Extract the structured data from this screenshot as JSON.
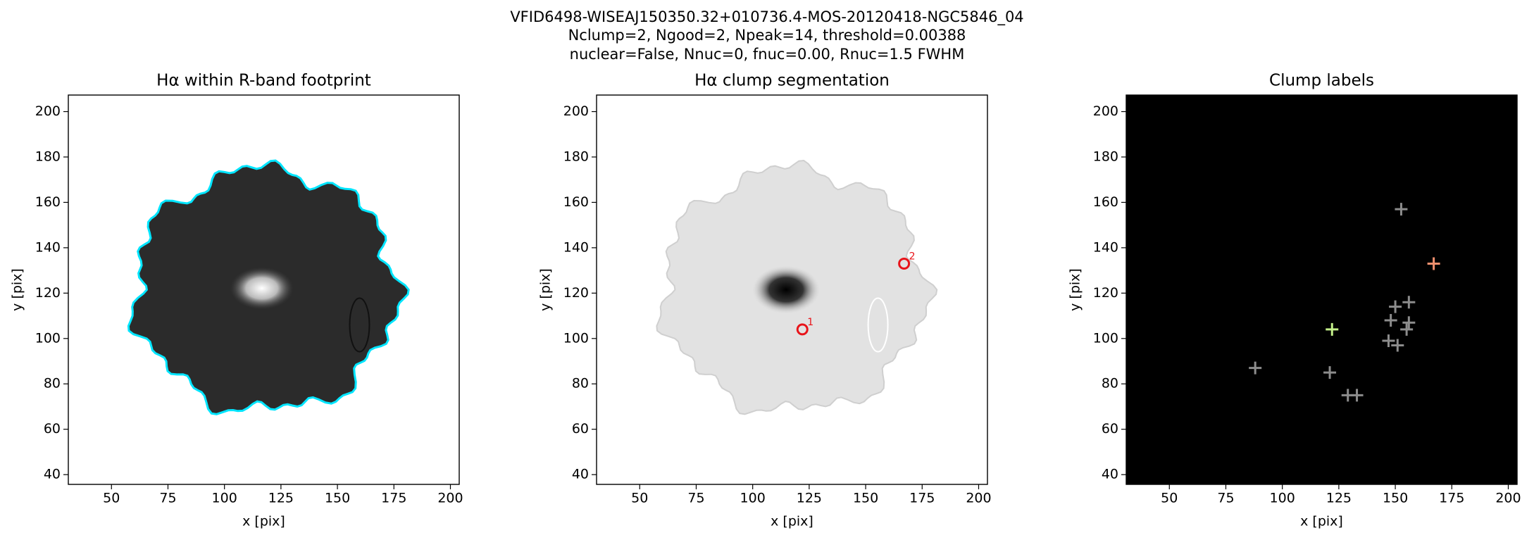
{
  "title": [
    "VFID6498-WISEAJ150350.32+010736.4-MOS-20120418-NGC5846_04",
    "Nclump=2, Ngood=2, Npeak=14, threshold=0.00388",
    "nuclear=False, Nnuc=0, fnuc=0.00, Rnuc=1.5 FWHM"
  ],
  "chart_data": [
    {
      "type": "image",
      "title": "Hα within R-band footprint",
      "xlabel": "x [pix]",
      "ylabel": "y [pix]",
      "xlim": [
        30.9,
        203.9
      ],
      "ylim": [
        35.7,
        207.3
      ],
      "xticks": [
        50,
        75,
        100,
        125,
        150,
        175,
        200
      ],
      "yticks": [
        40,
        60,
        80,
        100,
        120,
        140,
        160,
        180,
        200
      ],
      "image": "footprint"
    },
    {
      "type": "scatter",
      "title": "Hα clump segmentation",
      "xlabel": "x [pix]",
      "ylabel": "y [pix]",
      "xlim": [
        30.9,
        203.9
      ],
      "ylim": [
        35.7,
        207.3
      ],
      "xticks": [
        50,
        75,
        100,
        125,
        150,
        175,
        200
      ],
      "yticks": [
        40,
        60,
        80,
        100,
        120,
        140,
        160,
        180,
        200
      ],
      "image": "segmentation",
      "marker": "circle",
      "color": "#e8141a",
      "x": [
        122,
        167
      ],
      "values": [
        104,
        133
      ],
      "labels": [
        "1",
        "2"
      ]
    },
    {
      "type": "scatter",
      "title": "Clump labels",
      "xlabel": "x [pix]",
      "ylabel": "y [pix]",
      "xlim": [
        30.9,
        203.9
      ],
      "ylim": [
        35.7,
        207.3
      ],
      "xticks": [
        50,
        75,
        100,
        125,
        150,
        175,
        200
      ],
      "yticks": [
        40,
        60,
        80,
        100,
        120,
        140,
        160,
        180,
        200
      ],
      "image": "labels",
      "marker": "plus",
      "x": [
        152.6,
        167,
        122,
        88,
        121,
        129,
        133,
        148,
        150,
        156,
        156,
        155,
        147,
        151
      ],
      "values": [
        157,
        133,
        104,
        87,
        85,
        75,
        75,
        108,
        114,
        116,
        107,
        104,
        99,
        97
      ],
      "colors": [
        "#8c8c8c",
        "#f0906e",
        "#c4f08a",
        "#8c8c8c",
        "#8c8c8c",
        "#8c8c8c",
        "#8c8c8c",
        "#8c8c8c",
        "#8c8c8c",
        "#8c8c8c",
        "#8c8c8c",
        "#8c8c8c",
        "#8c8c8c",
        "#8c8c8c"
      ]
    }
  ]
}
